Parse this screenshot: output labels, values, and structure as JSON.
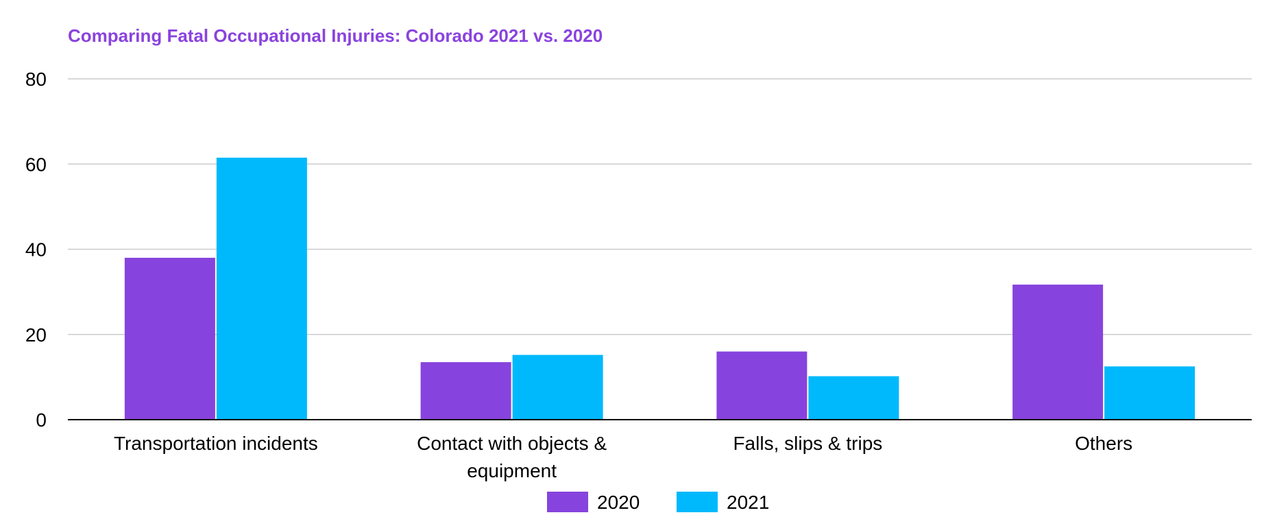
{
  "colors": {
    "title": "#8a43de",
    "series_2020": "#8743dd",
    "series_2021": "#00b9fc",
    "grid": "#cccccc",
    "axis": "#000000"
  },
  "chart_data": {
    "type": "bar",
    "title": "Comparing Fatal Occupational Injuries: Colorado 2021 vs. 2020",
    "xlabel": "",
    "ylabel": "",
    "categories": [
      [
        "Transportation incidents"
      ],
      [
        "Contact with objects &",
        "equipment"
      ],
      [
        "Falls, slips & trips"
      ],
      [
        "Others"
      ]
    ],
    "series": [
      {
        "name": "2020",
        "values": [
          38,
          13.5,
          16,
          31.7
        ]
      },
      {
        "name": "2021",
        "values": [
          61.5,
          15.2,
          10.2,
          12.5
        ]
      }
    ],
    "ylim": [
      0,
      80
    ],
    "yticks": [
      0,
      20,
      40,
      60,
      80
    ],
    "grid": true,
    "legend": "bottom"
  }
}
